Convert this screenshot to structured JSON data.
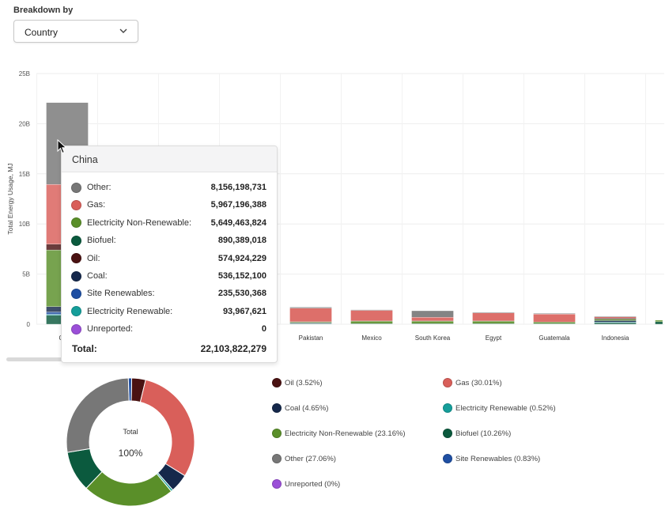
{
  "breakdown": {
    "label": "Breakdown by",
    "selected": "Country"
  },
  "colors": {
    "Other": "#777777",
    "Gas": "#d95f5a",
    "Electricity Non-Renewable": "#5a8f29",
    "Biofuel": "#0b5a3e",
    "Oil": "#4a1212",
    "Coal": "#15284b",
    "Site Renewables": "#1f4fa3",
    "Electricity Renewable": "#159e9a",
    "Unreported": "#9b4fd8"
  },
  "chart_data": [
    {
      "type": "bar",
      "stacked": true,
      "ylabel": "Total Energy Usage, MJ",
      "ylim": [
        0,
        25000000000
      ],
      "yticks": [
        "0",
        "5B",
        "10B",
        "15B",
        "20B",
        "25B"
      ],
      "grid": true,
      "categories": [
        "China",
        "",
        "",
        "",
        "Pakistan",
        "Mexico",
        "South Korea",
        "Egypt",
        "Guatemala",
        "Indonesia",
        ""
      ],
      "series": [
        {
          "name": "Biofuel",
          "values": [
            890389018,
            0,
            0,
            0,
            60000000,
            40000000,
            40000000,
            40000000,
            40000000,
            150000000,
            250000000
          ]
        },
        {
          "name": "Electricity Renewable",
          "values": [
            93967621,
            0,
            0,
            0,
            10000000,
            10000000,
            10000000,
            10000000,
            10000000,
            50000000,
            0
          ]
        },
        {
          "name": "Site Renewables",
          "values": [
            235530368,
            0,
            0,
            0,
            10000000,
            10000000,
            10000000,
            10000000,
            10000000,
            10000000,
            0
          ]
        },
        {
          "name": "Coal",
          "values": [
            536152100,
            0,
            0,
            0,
            50000000,
            0,
            0,
            0,
            0,
            150000000,
            0
          ]
        },
        {
          "name": "Electricity Non-Renewable",
          "values": [
            5649463824,
            0,
            0,
            0,
            100000000,
            250000000,
            250000000,
            250000000,
            150000000,
            150000000,
            150000000
          ]
        },
        {
          "name": "Oil",
          "values": [
            574924229,
            0,
            0,
            0,
            20000000,
            20000000,
            30000000,
            20000000,
            20000000,
            100000000,
            0
          ]
        },
        {
          "name": "Gas",
          "values": [
            5967196388,
            0,
            0,
            0,
            1350000000,
            1050000000,
            350000000,
            800000000,
            780000000,
            120000000,
            0
          ]
        },
        {
          "name": "Other",
          "values": [
            8156198731,
            0,
            0,
            0,
            100000000,
            30000000,
            650000000,
            40000000,
            40000000,
            50000000,
            0
          ]
        },
        {
          "name": "Unreported",
          "values": [
            0,
            0,
            0,
            0,
            0,
            0,
            0,
            0,
            0,
            0,
            0
          ]
        }
      ]
    },
    {
      "type": "pie",
      "donut": true,
      "center_label": "Total",
      "center_value": "100%",
      "slices": [
        {
          "name": "Oil",
          "value": 3.52,
          "legend": "Oil (3.52%)"
        },
        {
          "name": "Gas",
          "value": 30.01,
          "legend": "Gas (30.01%)"
        },
        {
          "name": "Coal",
          "value": 4.65,
          "legend": "Coal (4.65%)"
        },
        {
          "name": "Electricity Renewable",
          "value": 0.52,
          "legend": "Electricity Renewable (0.52%)"
        },
        {
          "name": "Electricity Non-Renewable",
          "value": 23.16,
          "legend": "Electricity Non-Renewable (23.16%)"
        },
        {
          "name": "Biofuel",
          "value": 10.26,
          "legend": "Biofuel (10.26%)"
        },
        {
          "name": "Other",
          "value": 27.06,
          "legend": "Other (27.06%)"
        },
        {
          "name": "Site Renewables",
          "value": 0.83,
          "legend": "Site Renewables (0.83%)"
        },
        {
          "name": "Unreported",
          "value": 0,
          "legend": "Unreported (0%)"
        }
      ]
    }
  ],
  "tooltip": {
    "title": "China",
    "rows": [
      {
        "name": "Other",
        "label": "Other:",
        "value": "8,156,198,731"
      },
      {
        "name": "Gas",
        "label": "Gas:",
        "value": "5,967,196,388"
      },
      {
        "name": "Electricity Non-Renewable",
        "label": "Electricity Non-Renewable:",
        "value": "5,649,463,824"
      },
      {
        "name": "Biofuel",
        "label": "Biofuel:",
        "value": "890,389,018"
      },
      {
        "name": "Oil",
        "label": "Oil:",
        "value": "574,924,229"
      },
      {
        "name": "Coal",
        "label": "Coal:",
        "value": "536,152,100"
      },
      {
        "name": "Site Renewables",
        "label": "Site Renewables:",
        "value": "235,530,368"
      },
      {
        "name": "Electricity Renewable",
        "label": "Electricity Renewable:",
        "value": "93,967,621"
      },
      {
        "name": "Unreported",
        "label": "Unreported:",
        "value": "0"
      }
    ],
    "total_label": "Total:",
    "total_value": "22,103,822,279"
  }
}
